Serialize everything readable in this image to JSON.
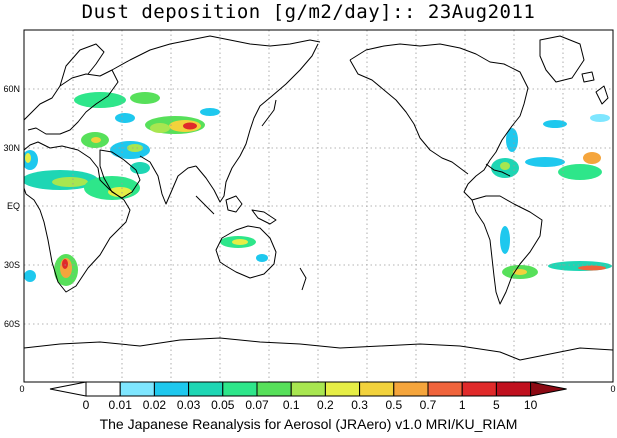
{
  "title": "Dust deposition [g/m2/day]:: 23Aug2011",
  "credit": "The Japanese Reanalysis for Aerosol (JRAero) v1.0 MRI/KU_RIAM",
  "latitude_labels": [
    "60N",
    "30N",
    "EQ",
    "30S",
    "60S"
  ],
  "longitude_labels": {
    "left": "0",
    "right": "0"
  },
  "colorbar": {
    "labels": [
      "0",
      "0.01",
      "0.02",
      "0.03",
      "0.05",
      "0.07",
      "0.1",
      "0.2",
      "0.3",
      "0.5",
      "0.7",
      "1",
      "5",
      "10"
    ],
    "colors": [
      "#ffffff",
      "#ffffff",
      "#7ee6ff",
      "#1ec8ee",
      "#1ed6b4",
      "#2ee68a",
      "#57e05a",
      "#a8e650",
      "#e6ee46",
      "#f2d23c",
      "#f5a53c",
      "#f0643c",
      "#e02a2a",
      "#c0101e",
      "#8c0a14"
    ]
  },
  "map": {
    "projection": "cylindrical equidistant",
    "longitude_range": [
      0,
      360
    ],
    "latitude_range": [
      -90,
      90
    ],
    "gridlines": "dotted, every 30 degrees",
    "dust_deposition_regions": [
      "North Africa / Sahara",
      "Arabian Peninsula",
      "Iran / Pakistan",
      "Taklimakan / Gobi",
      "Australia",
      "Southern Africa (Kalahari)",
      "South America / Patagonia",
      "Gulf of Mexico / Caribbean",
      "Atlantic (Saharan transport)"
    ]
  }
}
